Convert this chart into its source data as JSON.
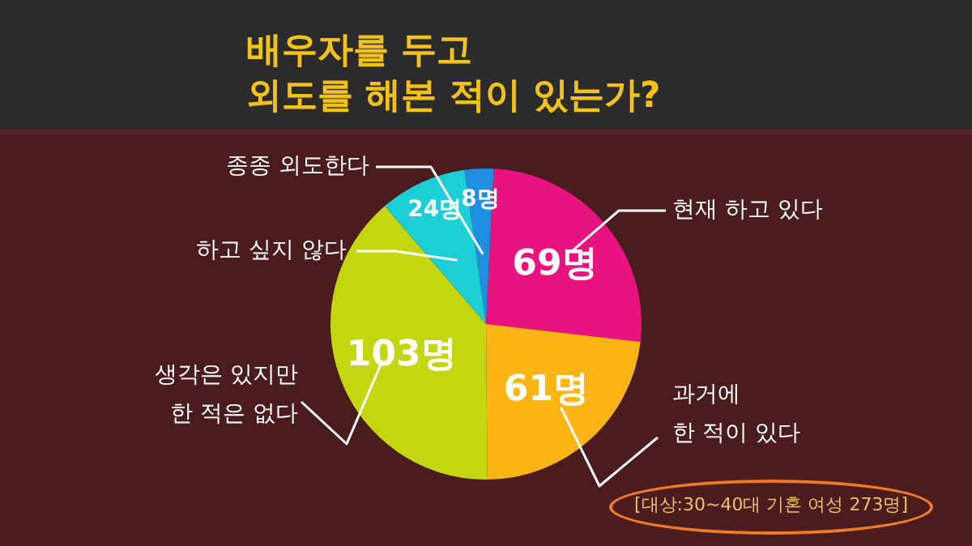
{
  "chart_data": {
    "type": "pie",
    "title": "배우자를 두고\n외도를 해본 적이 있는가?",
    "categories": [
      "종종 외도한다",
      "현재 하고 있다",
      "과거에\n한 적이 있다",
      "생각은 있지만\n한 적은 없다",
      "하고 싶지 않다"
    ],
    "values": [
      8,
      69,
      61,
      103,
      24
    ],
    "colors": [
      "#1e8ee0",
      "#e8137f",
      "#fdb515",
      "#c3d60f",
      "#1ccfd6"
    ],
    "value_labels": [
      "8명",
      "69명",
      "61명",
      "103명",
      "24명"
    ],
    "annotations": [
      "[대상:30~40대 기혼 여성 273명]"
    ]
  }
}
